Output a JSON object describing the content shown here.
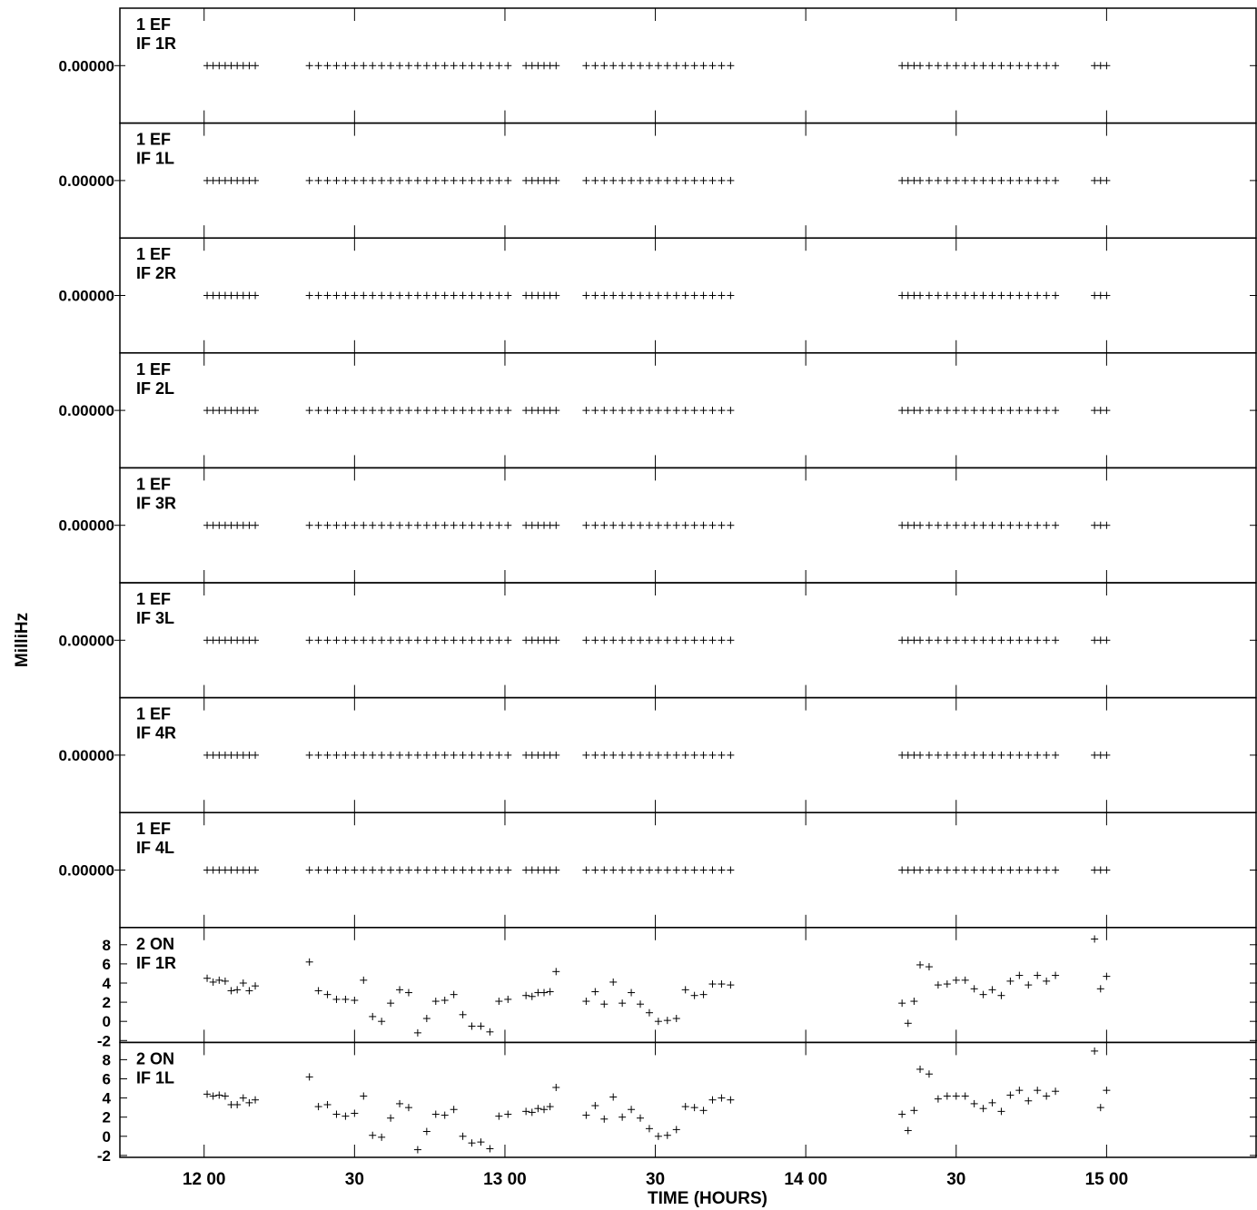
{
  "chart_data": {
    "type": "scatter",
    "title": "",
    "xlabel": "TIME (HOURS)",
    "ylabel": "MilliHz",
    "marker": "plus",
    "x_unit": "hours",
    "xlim": [
      11.72,
      15.5
    ],
    "x_ticks": [
      {
        "label": "12 00",
        "value": 12.0
      },
      {
        "label": "30",
        "value": 12.5
      },
      {
        "label": "13 00",
        "value": 13.0
      },
      {
        "label": "30",
        "value": 13.5
      },
      {
        "label": "14 00",
        "value": 14.0
      },
      {
        "label": "30",
        "value": 14.5
      },
      {
        "label": "15 00",
        "value": 15.0
      }
    ],
    "x": [
      12.01,
      12.03,
      12.05,
      12.07,
      12.09,
      12.11,
      12.13,
      12.15,
      12.17,
      12.35,
      12.38,
      12.41,
      12.44,
      12.47,
      12.5,
      12.53,
      12.56,
      12.59,
      12.62,
      12.65,
      12.68,
      12.71,
      12.74,
      12.77,
      12.8,
      12.83,
      12.86,
      12.89,
      12.92,
      12.95,
      12.98,
      13.01,
      13.07,
      13.09,
      13.11,
      13.13,
      13.15,
      13.17,
      13.27,
      13.3,
      13.33,
      13.36,
      13.39,
      13.42,
      13.45,
      13.48,
      13.51,
      13.54,
      13.57,
      13.6,
      13.63,
      13.66,
      13.69,
      13.72,
      13.75,
      14.32,
      14.34,
      14.36,
      14.38,
      14.41,
      14.44,
      14.47,
      14.5,
      14.53,
      14.56,
      14.59,
      14.62,
      14.65,
      14.68,
      14.71,
      14.74,
      14.77,
      14.8,
      14.83,
      14.96,
      14.98,
      15.0
    ],
    "panels": [
      {
        "label_line1": "1 EF",
        "label_line2": "IF 1R",
        "ytick_label": "0.00000",
        "y_constant": 0.0
      },
      {
        "label_line1": "1 EF",
        "label_line2": "IF 1L",
        "ytick_label": "0.00000",
        "y_constant": 0.0
      },
      {
        "label_line1": "1 EF",
        "label_line2": "IF 2R",
        "ytick_label": "0.00000",
        "y_constant": 0.0
      },
      {
        "label_line1": "1 EF",
        "label_line2": "IF 2L",
        "ytick_label": "0.00000",
        "y_constant": 0.0
      },
      {
        "label_line1": "1 EF",
        "label_line2": "IF 3R",
        "ytick_label": "0.00000",
        "y_constant": 0.0
      },
      {
        "label_line1": "1 EF",
        "label_line2": "IF 3L",
        "ytick_label": "0.00000",
        "y_constant": 0.0
      },
      {
        "label_line1": "1 EF",
        "label_line2": "IF 4R",
        "ytick_label": "0.00000",
        "y_constant": 0.0
      },
      {
        "label_line1": "1 EF",
        "label_line2": "IF 4L",
        "ytick_label": "0.00000",
        "y_constant": 0.0
      },
      {
        "label_line1": "2 ON",
        "label_line2": "IF 1R",
        "ylim": [
          -2.2,
          9.8
        ],
        "y_ticks": [
          "-2",
          "0",
          "2",
          "4",
          "6",
          "8"
        ],
        "y": [
          4.5,
          4.1,
          4.3,
          4.2,
          3.2,
          3.3,
          4.0,
          3.2,
          3.7,
          6.2,
          3.2,
          2.8,
          2.3,
          2.3,
          2.2,
          4.3,
          0.5,
          0.0,
          1.9,
          3.3,
          3.0,
          -1.2,
          0.3,
          2.1,
          2.2,
          2.8,
          0.7,
          -0.5,
          -0.5,
          -1.1,
          2.1,
          2.3,
          2.7,
          2.6,
          3.0,
          3.0,
          3.1,
          5.2,
          2.1,
          3.1,
          1.8,
          4.1,
          1.9,
          3.0,
          1.8,
          0.9,
          0.0,
          0.1,
          0.3,
          3.3,
          2.7,
          2.8,
          3.9,
          3.9,
          3.8,
          1.9,
          -0.2,
          2.1,
          5.9,
          5.7,
          3.8,
          3.9,
          4.3,
          4.3,
          3.4,
          2.8,
          3.3,
          2.7,
          4.2,
          4.8,
          3.8,
          4.8,
          4.2,
          4.8,
          8.6,
          3.4,
          4.7
        ]
      },
      {
        "label_line1": "2 ON",
        "label_line2": "IF 1L",
        "ylim": [
          -2.2,
          9.8
        ],
        "y_ticks": [
          "-2",
          "0",
          "2",
          "4",
          "6",
          "8"
        ],
        "y": [
          4.4,
          4.2,
          4.3,
          4.2,
          3.3,
          3.3,
          4.0,
          3.5,
          3.8,
          6.2,
          3.1,
          3.3,
          2.3,
          2.1,
          2.4,
          4.2,
          0.1,
          -0.1,
          1.9,
          3.4,
          3.0,
          -1.4,
          0.5,
          2.3,
          2.2,
          2.8,
          0.0,
          -0.7,
          -0.6,
          -1.3,
          2.1,
          2.3,
          2.6,
          2.5,
          2.9,
          2.8,
          3.1,
          5.1,
          2.2,
          3.2,
          1.8,
          4.1,
          2.0,
          2.8,
          1.9,
          0.8,
          0.0,
          0.1,
          0.7,
          3.1,
          3.0,
          2.7,
          3.8,
          4.0,
          3.8,
          2.3,
          0.6,
          2.7,
          7.0,
          6.5,
          3.9,
          4.2,
          4.2,
          4.2,
          3.4,
          2.9,
          3.5,
          2.6,
          4.3,
          4.8,
          3.7,
          4.8,
          4.2,
          4.7,
          8.9,
          3.0,
          4.8
        ]
      }
    ]
  }
}
